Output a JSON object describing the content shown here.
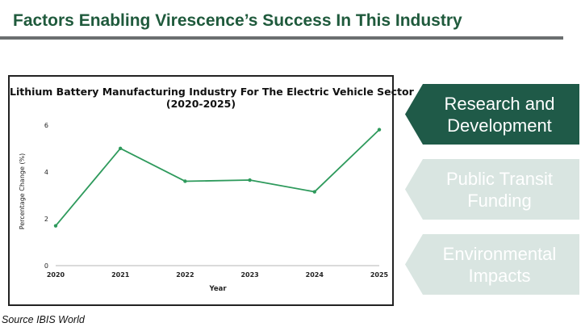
{
  "slide": {
    "title": "Factors Enabling Virescence’s Success In This Industry",
    "source": "Source IBIS World"
  },
  "factors": [
    {
      "label": "Research and\nDevelopment",
      "active": true
    },
    {
      "label": "Public Transit\nFunding",
      "active": false
    },
    {
      "label": "Environmental\nImpacts",
      "active": false
    }
  ],
  "colors": {
    "title": "#1f5a3c",
    "line": "#2e9a5c",
    "active_chevron": "#1f5a48",
    "inactive_chevron": "#d9e5e1"
  },
  "chart_data": {
    "type": "line",
    "title_lines": [
      "Lithium Battery Manufacturing Industry For The Electric Vehicle Sector",
      "(2020-2025)"
    ],
    "xlabel": "Year",
    "ylabel": "Percentage Change (%)",
    "categories": [
      "2020",
      "2021",
      "2022",
      "2023",
      "2024",
      "2025"
    ],
    "values": [
      1.7,
      5.0,
      3.6,
      3.65,
      3.15,
      5.8
    ],
    "yticks": [
      0,
      2,
      4,
      6
    ],
    "ylim": [
      0,
      6.2
    ],
    "grid": false,
    "legend": "none"
  }
}
